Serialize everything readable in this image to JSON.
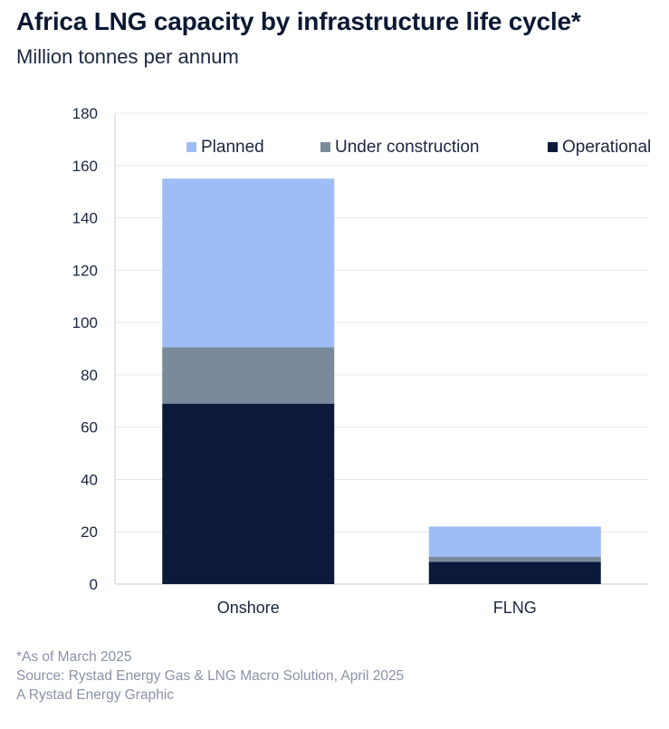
{
  "title": "Africa LNG capacity by infrastructure life cycle*",
  "subtitle": "Million tonnes per annum",
  "footer": {
    "note": "*As of March 2025",
    "source": "Source: Rystad Energy Gas & LNG Macro Solution, April 2025",
    "credit": "A Rystad Energy Graphic"
  },
  "colors": {
    "operational": "#0b1a3a",
    "under_construction": "#7a8a9a",
    "planned": "#9ebcf5",
    "gridline": "#e6e8ec",
    "axis_text": "#1c2640"
  },
  "chart_data": {
    "type": "bar",
    "stacked": true,
    "categories": [
      "Onshore",
      "FLNG"
    ],
    "series": [
      {
        "name": "Operational",
        "values": [
          69,
          8.5
        ]
      },
      {
        "name": "Under construction",
        "values": [
          21.5,
          2
        ]
      },
      {
        "name": "Planned",
        "values": [
          64.5,
          11.5
        ]
      }
    ],
    "legend_order": [
      "Planned",
      "Under construction",
      "Operational"
    ],
    "ylim": [
      0,
      180
    ],
    "yticks": [
      0,
      20,
      40,
      60,
      80,
      100,
      120,
      140,
      160,
      180
    ],
    "grid": true,
    "legend_position": "top"
  }
}
